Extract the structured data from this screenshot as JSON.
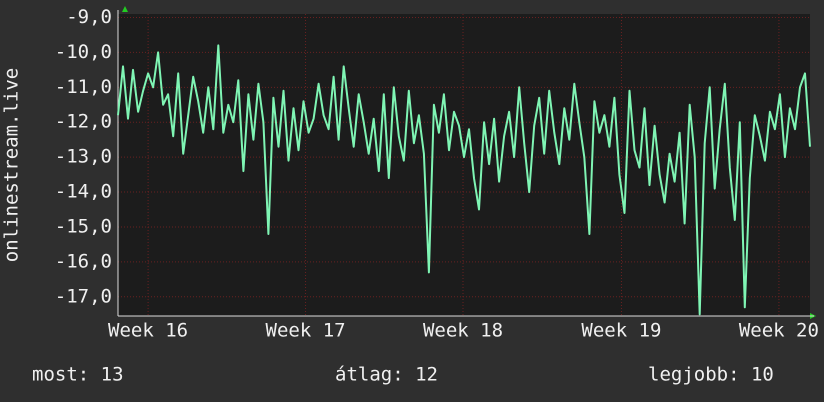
{
  "chart_data": {
    "type": "line",
    "y_label": "onlinestream.live",
    "ylim": [
      -17.55,
      -8.9
    ],
    "yticks": [
      {
        "value": -9,
        "label": "-9,0"
      },
      {
        "value": -10,
        "label": "-10,0"
      },
      {
        "value": -11,
        "label": "-11,0"
      },
      {
        "value": -12,
        "label": "-12,0"
      },
      {
        "value": -13,
        "label": "-13,0"
      },
      {
        "value": -14,
        "label": "-14,0"
      },
      {
        "value": -15,
        "label": "-15,0"
      },
      {
        "value": -16,
        "label": "-16,0"
      },
      {
        "value": -17,
        "label": "-17,0"
      }
    ],
    "xlim": [
      0,
      138
    ],
    "xticks": [
      {
        "value": 6,
        "label": "Week 16"
      },
      {
        "value": 37.4,
        "label": "Week 17"
      },
      {
        "value": 68.8,
        "label": "Week 18"
      },
      {
        "value": 100.4,
        "label": "Week 19"
      },
      {
        "value": 131.8,
        "label": "Week 20"
      }
    ],
    "grid": true,
    "x": [
      0,
      1,
      2,
      3,
      4,
      5,
      6,
      7,
      8,
      9,
      10,
      11,
      12,
      13,
      14,
      15,
      16,
      17,
      18,
      19,
      20,
      21,
      22,
      23,
      24,
      25,
      26,
      27,
      28,
      29,
      30,
      31,
      32,
      33,
      34,
      35,
      36,
      37,
      38,
      39,
      40,
      41,
      42,
      43,
      44,
      45,
      46,
      47,
      48,
      49,
      50,
      51,
      52,
      53,
      54,
      55,
      56,
      57,
      58,
      59,
      60,
      61,
      62,
      63,
      64,
      65,
      66,
      67,
      68,
      69,
      70,
      71,
      72,
      73,
      74,
      75,
      76,
      77,
      78,
      79,
      80,
      81,
      82,
      83,
      84,
      85,
      86,
      87,
      88,
      89,
      90,
      91,
      92,
      93,
      94,
      95,
      96,
      97,
      98,
      99,
      100,
      101,
      102,
      103,
      104,
      105,
      106,
      107,
      108,
      109,
      110,
      111,
      112,
      113,
      114,
      115,
      116,
      117,
      118,
      119,
      120,
      121,
      122,
      123,
      124,
      125,
      126,
      127,
      128,
      129,
      130,
      131,
      132,
      133,
      134,
      135,
      136,
      137,
      138
    ],
    "series": [
      {
        "color": "#7ff5b4",
        "values": [
          -11.8,
          -10.4,
          -11.9,
          -10.5,
          -11.7,
          -11.1,
          -10.6,
          -11.0,
          -10.0,
          -11.5,
          -11.2,
          -12.4,
          -10.6,
          -12.9,
          -11.8,
          -10.7,
          -11.4,
          -12.3,
          -11.0,
          -12.2,
          -9.8,
          -12.3,
          -11.5,
          -12.0,
          -10.8,
          -13.4,
          -11.2,
          -12.5,
          -10.9,
          -12.0,
          -15.2,
          -11.3,
          -12.7,
          -11.1,
          -13.1,
          -11.6,
          -12.8,
          -11.4,
          -12.3,
          -11.9,
          -10.9,
          -11.8,
          -12.2,
          -10.7,
          -12.5,
          -10.4,
          -11.6,
          -12.7,
          -11.2,
          -12.0,
          -12.9,
          -11.9,
          -13.4,
          -11.2,
          -13.6,
          -11.0,
          -12.4,
          -13.1,
          -11.1,
          -12.6,
          -11.8,
          -12.9,
          -16.3,
          -11.5,
          -12.3,
          -11.2,
          -12.8,
          -11.7,
          -12.1,
          -13.0,
          -12.2,
          -13.6,
          -14.5,
          -12.0,
          -13.2,
          -11.9,
          -13.7,
          -12.4,
          -11.7,
          -13.0,
          -11.0,
          -12.6,
          -14.0,
          -12.1,
          -11.3,
          -12.9,
          -11.1,
          -12.3,
          -13.2,
          -11.6,
          -12.5,
          -10.9,
          -12.0,
          -13.0,
          -15.2,
          -11.4,
          -12.3,
          -11.8,
          -12.7,
          -11.3,
          -13.5,
          -14.6,
          -11.1,
          -12.8,
          -13.3,
          -11.6,
          -13.8,
          -12.1,
          -13.5,
          -14.3,
          -12.9,
          -13.7,
          -12.3,
          -14.9,
          -11.5,
          -13.0,
          -17.5,
          -12.6,
          -11.0,
          -13.9,
          -12.2,
          -10.9,
          -13.3,
          -14.8,
          -12.0,
          -17.3,
          -13.6,
          -11.8,
          -12.4,
          -13.1,
          -11.7,
          -12.2,
          -11.2,
          -13.0,
          -11.6,
          -12.2,
          -11.0,
          -10.6,
          -12.7
        ]
      }
    ],
    "annotations": [
      "most: 13",
      "átlag: 12",
      "legjobb: 10"
    ]
  }
}
